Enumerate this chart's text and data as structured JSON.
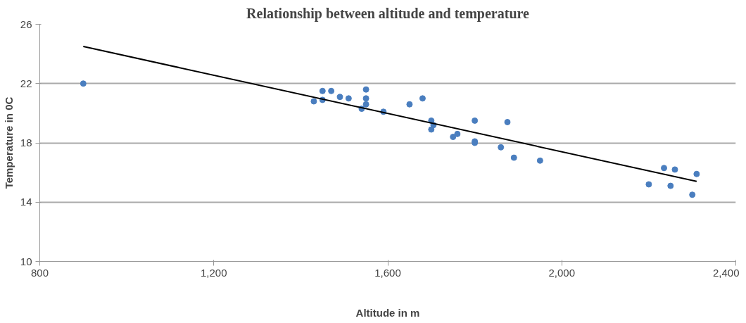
{
  "chart_data": {
    "type": "scatter",
    "title": "Relationship between altitude and temperature",
    "xlabel": "Altitude in m",
    "ylabel": "Temperature in 0C",
    "xlim": [
      800,
      2400
    ],
    "xticks": [
      {
        "value": 800,
        "label": "800"
      },
      {
        "value": 1200,
        "label": "1,200"
      },
      {
        "value": 1600,
        "label": "1,600"
      },
      {
        "value": 2000,
        "label": "2,000"
      },
      {
        "value": 2400,
        "label": "2,400"
      }
    ],
    "ylim": [
      10,
      26
    ],
    "yticks": [
      10,
      14,
      18,
      22,
      26
    ],
    "grid": "y",
    "series": [
      {
        "marker": "circle",
        "color": "#4a7ebf",
        "x": [
          900,
          1430,
          1450,
          1450,
          1470,
          1490,
          1510,
          1540,
          1550,
          1550,
          1550,
          1590,
          1650,
          1680,
          1700,
          1700,
          1705,
          1750,
          1760,
          1800,
          1800,
          1800,
          1860,
          1875,
          1890,
          1950,
          2200,
          2235,
          2250,
          2260,
          2300,
          2310
        ],
        "values": [
          22.0,
          20.8,
          21.5,
          20.9,
          21.5,
          21.1,
          21.0,
          20.3,
          21.6,
          21.0,
          20.6,
          20.1,
          20.6,
          21.0,
          19.5,
          18.9,
          19.2,
          18.4,
          18.6,
          19.5,
          18.1,
          18.0,
          17.7,
          19.4,
          17.0,
          16.8,
          15.2,
          16.3,
          15.1,
          16.2,
          14.5,
          15.9
        ]
      },
      {
        "type": "line",
        "color": "#000000",
        "x": [
          900,
          2310
        ],
        "values": [
          24.5,
          15.4
        ]
      }
    ]
  }
}
